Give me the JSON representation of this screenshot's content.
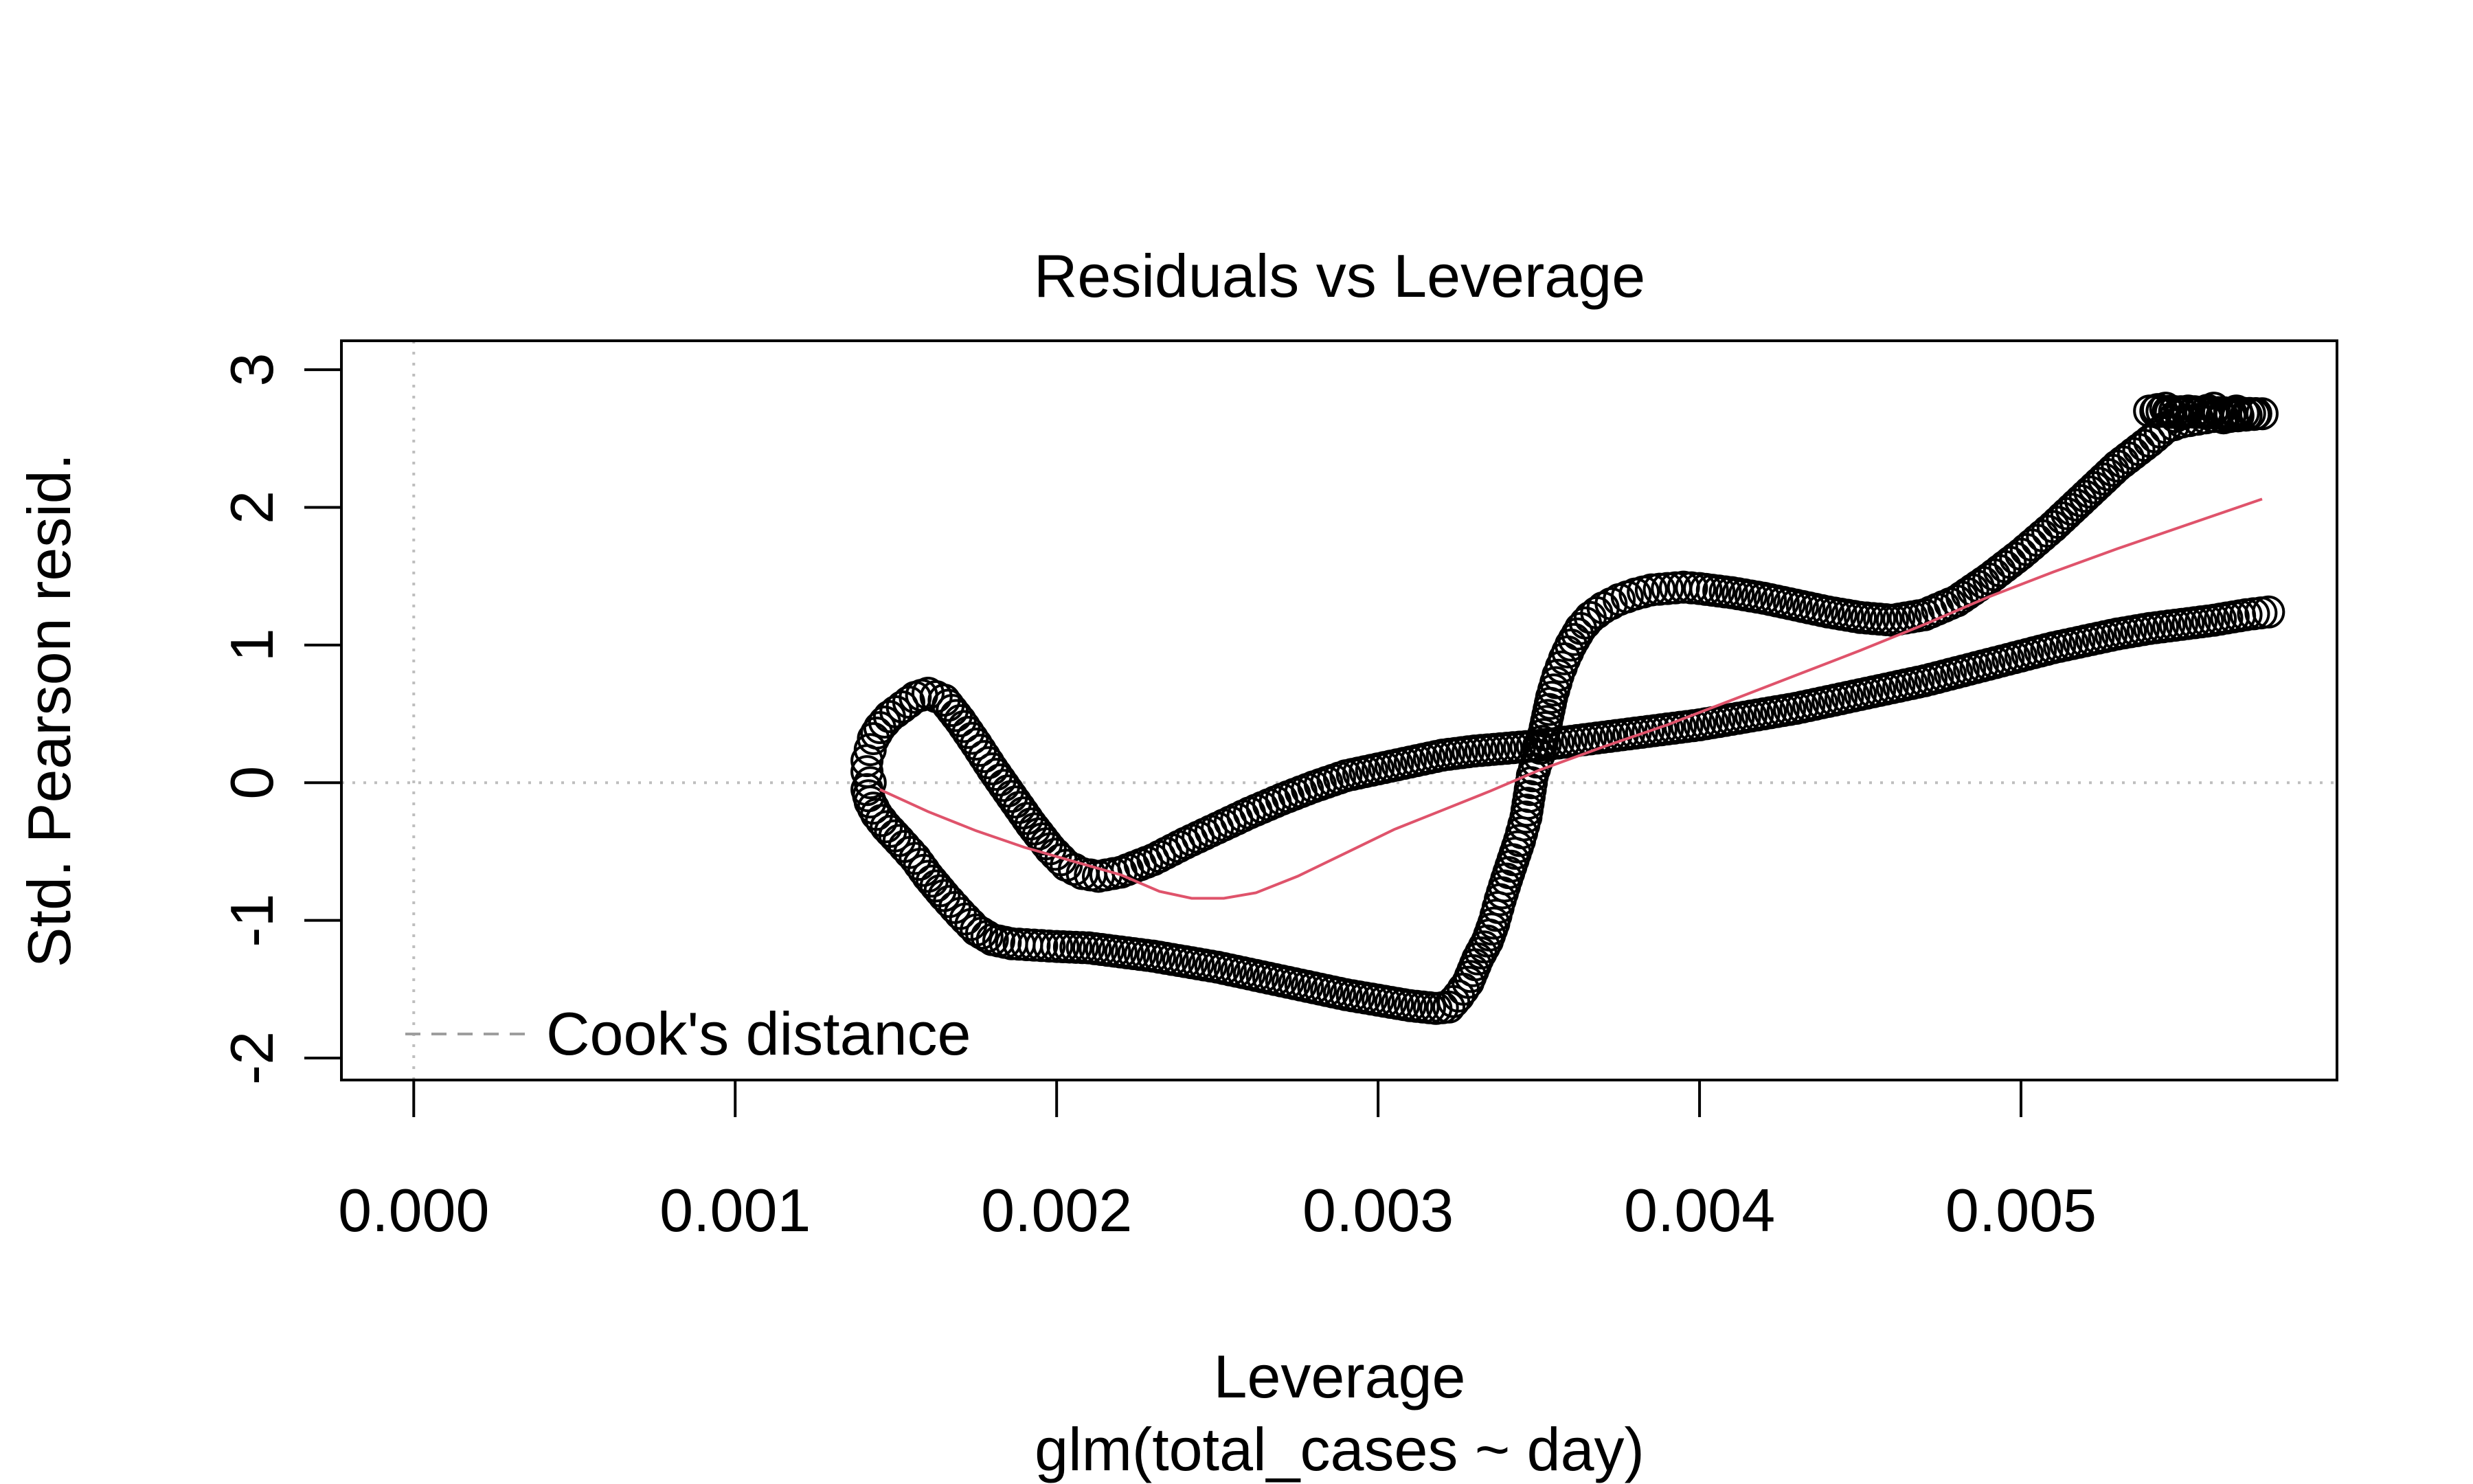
{
  "chart_data": {
    "type": "scatter",
    "title": "Residuals vs Leverage",
    "xlabel": "Leverage",
    "subtitle": "glm(total_cases ~ day)",
    "ylabel": "Std. Pearson resid.",
    "xlim": [
      -0.000225,
      0.005983
    ],
    "ylim": [
      -2.16,
      3.21
    ],
    "x_ticks": [
      {
        "value": 0.0,
        "label": "0.000"
      },
      {
        "value": 0.001,
        "label": "0.001"
      },
      {
        "value": 0.002,
        "label": "0.002"
      },
      {
        "value": 0.003,
        "label": "0.003"
      },
      {
        "value": 0.004,
        "label": "0.004"
      },
      {
        "value": 0.005,
        "label": "0.005"
      }
    ],
    "y_ticks": [
      {
        "value": -2,
        "label": "-2"
      },
      {
        "value": -1,
        "label": "-1"
      },
      {
        "value": 0,
        "label": "0"
      },
      {
        "value": 1,
        "label": "1"
      },
      {
        "value": 2,
        "label": "2"
      },
      {
        "value": 3,
        "label": "3"
      }
    ],
    "reference_lines": {
      "x": 0,
      "y": 0,
      "color": "#BEBEBE",
      "style": "dotted"
    },
    "legend": {
      "label": "Cook's distance",
      "position": "bottom-left",
      "color": "#9E9E9E",
      "style": "dashed"
    },
    "point_color": "#000000",
    "smooth_color": "#DF536B",
    "series": [
      {
        "kind": "points",
        "points": [
          [
            0.00142,
            0.0
          ],
          [
            0.00141,
            0.08
          ],
          [
            0.00141,
            0.16
          ],
          [
            0.00142,
            0.24
          ],
          [
            0.00143,
            0.32
          ],
          [
            0.00145,
            0.4
          ],
          [
            0.00148,
            0.48
          ],
          [
            0.00152,
            0.55
          ],
          [
            0.00156,
            0.62
          ],
          [
            0.0016,
            0.65
          ],
          [
            0.00165,
            0.6
          ],
          [
            0.0017,
            0.45
          ],
          [
            0.00175,
            0.28
          ],
          [
            0.0018,
            0.1
          ],
          [
            0.00186,
            -0.1
          ],
          [
            0.00192,
            -0.3
          ],
          [
            0.00198,
            -0.48
          ],
          [
            0.00203,
            -0.6
          ],
          [
            0.00208,
            -0.66
          ],
          [
            0.00213,
            -0.68
          ],
          [
            0.0022,
            -0.65
          ],
          [
            0.0023,
            -0.56
          ],
          [
            0.0024,
            -0.44
          ],
          [
            0.0025,
            -0.33
          ],
          [
            0.0026,
            -0.22
          ],
          [
            0.0027,
            -0.12
          ],
          [
            0.0028,
            -0.03
          ],
          [
            0.0029,
            0.05
          ],
          [
            0.003,
            0.1
          ],
          [
            0.0031,
            0.15
          ],
          [
            0.0032,
            0.2
          ],
          [
            0.0033,
            0.23
          ],
          [
            0.0034,
            0.25
          ],
          [
            0.0035,
            0.27
          ],
          [
            0.0036,
            0.3
          ],
          [
            0.0037,
            0.33
          ],
          [
            0.0038,
            0.36
          ],
          [
            0.0039,
            0.39
          ],
          [
            0.004,
            0.42
          ],
          [
            0.0041,
            0.46
          ],
          [
            0.0042,
            0.5
          ],
          [
            0.0043,
            0.54
          ],
          [
            0.0044,
            0.59
          ],
          [
            0.0045,
            0.64
          ],
          [
            0.0046,
            0.69
          ],
          [
            0.0047,
            0.74
          ],
          [
            0.0048,
            0.8
          ],
          [
            0.0049,
            0.86
          ],
          [
            0.005,
            0.92
          ],
          [
            0.0051,
            0.98
          ],
          [
            0.0052,
            1.03
          ],
          [
            0.0053,
            1.08
          ],
          [
            0.0054,
            1.12
          ],
          [
            0.0055,
            1.15
          ],
          [
            0.0056,
            1.18
          ],
          [
            0.0057,
            1.22
          ],
          [
            0.00577,
            1.24
          ],
          [
            0.00141,
            -0.05
          ],
          [
            0.00142,
            -0.14
          ],
          [
            0.00144,
            -0.23
          ],
          [
            0.00147,
            -0.32
          ],
          [
            0.00151,
            -0.42
          ],
          [
            0.00156,
            -0.55
          ],
          [
            0.0016,
            -0.68
          ],
          [
            0.00165,
            -0.82
          ],
          [
            0.0017,
            -0.95
          ],
          [
            0.00175,
            -1.07
          ],
          [
            0.0018,
            -1.14
          ],
          [
            0.00186,
            -1.17
          ],
          [
            0.00193,
            -1.18
          ],
          [
            0.002,
            -1.19
          ],
          [
            0.0021,
            -1.2
          ],
          [
            0.0022,
            -1.23
          ],
          [
            0.0023,
            -1.26
          ],
          [
            0.0024,
            -1.3
          ],
          [
            0.0025,
            -1.34
          ],
          [
            0.0026,
            -1.39
          ],
          [
            0.0027,
            -1.44
          ],
          [
            0.0028,
            -1.49
          ],
          [
            0.0029,
            -1.54
          ],
          [
            0.003,
            -1.58
          ],
          [
            0.0031,
            -1.62
          ],
          [
            0.00318,
            -1.64
          ],
          [
            0.00322,
            -1.63
          ],
          [
            0.00325,
            -1.55
          ],
          [
            0.00328,
            -1.45
          ],
          [
            0.00331,
            -1.28
          ],
          [
            0.00334,
            -1.15
          ],
          [
            0.00336,
            -1.02
          ],
          [
            0.00338,
            -0.85
          ],
          [
            0.0034,
            -0.7
          ],
          [
            0.00342,
            -0.56
          ],
          [
            0.00344,
            -0.42
          ],
          [
            0.00346,
            -0.25
          ],
          [
            0.00347,
            -0.1
          ],
          [
            0.00348,
            0.05
          ],
          [
            0.0035,
            0.2
          ],
          [
            0.00352,
            0.4
          ],
          [
            0.00354,
            0.62
          ],
          [
            0.00356,
            0.78
          ],
          [
            0.00358,
            0.9
          ],
          [
            0.0036,
            1.0
          ],
          [
            0.00363,
            1.12
          ],
          [
            0.00366,
            1.2
          ],
          [
            0.0037,
            1.27
          ],
          [
            0.00375,
            1.33
          ],
          [
            0.0038,
            1.37
          ],
          [
            0.00385,
            1.4
          ],
          [
            0.0039,
            1.41
          ],
          [
            0.00395,
            1.42
          ],
          [
            0.004,
            1.41
          ],
          [
            0.0041,
            1.38
          ],
          [
            0.0042,
            1.34
          ],
          [
            0.0043,
            1.29
          ],
          [
            0.0044,
            1.24
          ],
          [
            0.0045,
            1.2
          ],
          [
            0.0046,
            1.18
          ],
          [
            0.0047,
            1.22
          ],
          [
            0.0048,
            1.32
          ],
          [
            0.0049,
            1.48
          ],
          [
            0.005,
            1.66
          ],
          [
            0.0051,
            1.86
          ],
          [
            0.0052,
            2.08
          ],
          [
            0.0053,
            2.3
          ],
          [
            0.0054,
            2.48
          ],
          [
            0.00545,
            2.58
          ],
          [
            0.0055,
            2.62
          ],
          [
            0.00555,
            2.64
          ],
          [
            0.0056,
            2.66
          ],
          [
            0.00565,
            2.66
          ],
          [
            0.0057,
            2.67
          ],
          [
            0.00575,
            2.68
          ],
          [
            0.0054,
            2.7
          ],
          [
            0.00545,
            2.72
          ],
          [
            0.00548,
            2.66
          ],
          [
            0.00552,
            2.7
          ],
          [
            0.00556,
            2.69
          ],
          [
            0.0056,
            2.72
          ],
          [
            0.00563,
            2.65
          ],
          [
            0.00567,
            2.7
          ]
        ]
      },
      {
        "kind": "smooth",
        "points": [
          [
            0.00145,
            -0.05
          ],
          [
            0.0016,
            -0.21
          ],
          [
            0.00175,
            -0.35
          ],
          [
            0.0019,
            -0.47
          ],
          [
            0.00205,
            -0.57
          ],
          [
            0.0022,
            -0.67
          ],
          [
            0.00232,
            -0.79
          ],
          [
            0.00242,
            -0.84
          ],
          [
            0.00252,
            -0.84
          ],
          [
            0.00262,
            -0.8
          ],
          [
            0.00275,
            -0.68
          ],
          [
            0.0029,
            -0.51
          ],
          [
            0.00305,
            -0.34
          ],
          [
            0.0032,
            -0.2
          ],
          [
            0.00335,
            -0.06
          ],
          [
            0.0035,
            0.09
          ],
          [
            0.0037,
            0.26
          ],
          [
            0.0039,
            0.42
          ],
          [
            0.0041,
            0.6
          ],
          [
            0.0043,
            0.78
          ],
          [
            0.0045,
            0.96
          ],
          [
            0.0047,
            1.15
          ],
          [
            0.0049,
            1.35
          ],
          [
            0.0051,
            1.53
          ],
          [
            0.0053,
            1.7
          ],
          [
            0.0055,
            1.86
          ],
          [
            0.00575,
            2.06
          ]
        ]
      }
    ]
  }
}
